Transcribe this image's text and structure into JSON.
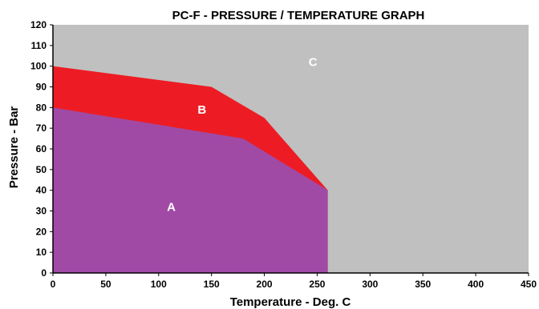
{
  "chart_data": {
    "type": "area",
    "title": "PC-F -  PRESSURE / TEMPERATURE GRAPH",
    "xlabel": "Temperature - Deg. C",
    "ylabel": "Pressure - Bar",
    "xlim": [
      0,
      450
    ],
    "ylim": [
      0,
      120
    ],
    "x_ticks": [
      0,
      50,
      100,
      150,
      200,
      250,
      300,
      350,
      400,
      450
    ],
    "y_ticks": [
      0,
      10,
      20,
      30,
      40,
      50,
      60,
      70,
      80,
      90,
      100,
      110,
      120
    ],
    "grid": false,
    "background_region": {
      "label": "C",
      "color": "#c0c0c0",
      "label_pos": [
        246,
        102
      ]
    },
    "series": [
      {
        "label": "B",
        "color": "#ed1c24",
        "boundary": [
          [
            0,
            100
          ],
          [
            150,
            90
          ],
          [
            200,
            75
          ],
          [
            260,
            40
          ]
        ],
        "label_pos": [
          141,
          79
        ]
      },
      {
        "label": "A",
        "color": "#a04aa6",
        "boundary": [
          [
            0,
            80
          ],
          [
            180,
            65
          ],
          [
            260,
            40
          ]
        ],
        "label_pos": [
          112,
          32
        ]
      }
    ]
  }
}
